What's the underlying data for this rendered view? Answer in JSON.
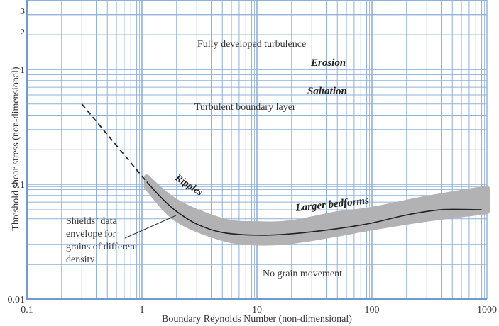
{
  "chart_data": {
    "type": "line",
    "title": "",
    "xlabel": "Boundary Reynolds Number (non-dimensional)",
    "ylabel": "Threshold shear stress (non-dimensional)",
    "xscale": "log",
    "yscale": "log",
    "xlim": [
      0.1,
      1000
    ],
    "ylim": [
      0.01,
      3.3
    ],
    "x_ticks": [
      "0.1",
      "1",
      "10",
      "100",
      "1000"
    ],
    "y_ticks": [
      "0.01",
      "0.1",
      "1",
      "2",
      "3"
    ],
    "grid": true,
    "series": [
      {
        "name": "Shields curve",
        "style": "solid",
        "x": [
          1.1,
          1.5,
          2,
          3,
          5,
          10,
          20,
          50,
          100,
          200,
          400,
          900
        ],
        "y": [
          0.105,
          0.075,
          0.058,
          0.045,
          0.038,
          0.036,
          0.037,
          0.041,
          0.046,
          0.054,
          0.06,
          0.06
        ]
      },
      {
        "name": "Extrapolation",
        "style": "dashed",
        "x": [
          0.3,
          1.1
        ],
        "y": [
          0.5,
          0.105
        ]
      },
      {
        "name": "Shields' data envelope",
        "style": "band",
        "x": [
          1.1,
          2,
          5,
          10,
          20,
          50,
          100,
          300,
          1000
        ],
        "y_upper": [
          0.115,
          0.07,
          0.048,
          0.045,
          0.046,
          0.055,
          0.06,
          0.075,
          0.092
        ],
        "y_lower": [
          0.095,
          0.05,
          0.034,
          0.031,
          0.032,
          0.037,
          0.042,
          0.05,
          0.058
        ]
      }
    ],
    "annotations": [
      {
        "text": "Fully developed turbulence",
        "x": 8,
        "y": 2.0
      },
      {
        "text": "Erosion",
        "x": 50,
        "y": 1.1,
        "style": "bold-italic"
      },
      {
        "text": "Saltation",
        "x": 50,
        "y": 0.7,
        "style": "bold-italic"
      },
      {
        "text": "Turbulent boundary layer",
        "x": 7,
        "y": 0.5
      },
      {
        "text": "Ripples",
        "x": 3,
        "y": 0.085,
        "style": "bold-italic"
      },
      {
        "text": "Larger bedforms",
        "x": 60,
        "y": 0.06,
        "style": "bold-italic"
      },
      {
        "text": "Shields' data envelope for grains of different density",
        "x": 0.3,
        "y": 0.035
      },
      {
        "text": "No grain movement",
        "x": 15,
        "y": 0.018
      }
    ]
  },
  "labels": {
    "ylabel": "Threshold shear stress (non-dimensional)",
    "xlabel": "Boundary Reynolds Number (non-dimensional)",
    "x_ticks": [
      "0.1",
      "1",
      "10",
      "100",
      "1000"
    ],
    "y_ticks": [
      "0.01",
      "0.1",
      "1",
      "2",
      "3"
    ],
    "fully": "Fully developed turbulence",
    "erosion": "Erosion",
    "saltation": "Saltation",
    "turbulent": "Turbulent boundary layer",
    "ripples": "Ripples",
    "bedforms": "Larger bedforms",
    "envelope": [
      "Shields’ data",
      "envelope for",
      "grains of different",
      "density"
    ],
    "nograin": "No grain movement"
  },
  "colors": {
    "grid": "#8fb0d8",
    "axis": "#6f9ccf",
    "band": "#b2b2b4",
    "line": "#222222"
  }
}
